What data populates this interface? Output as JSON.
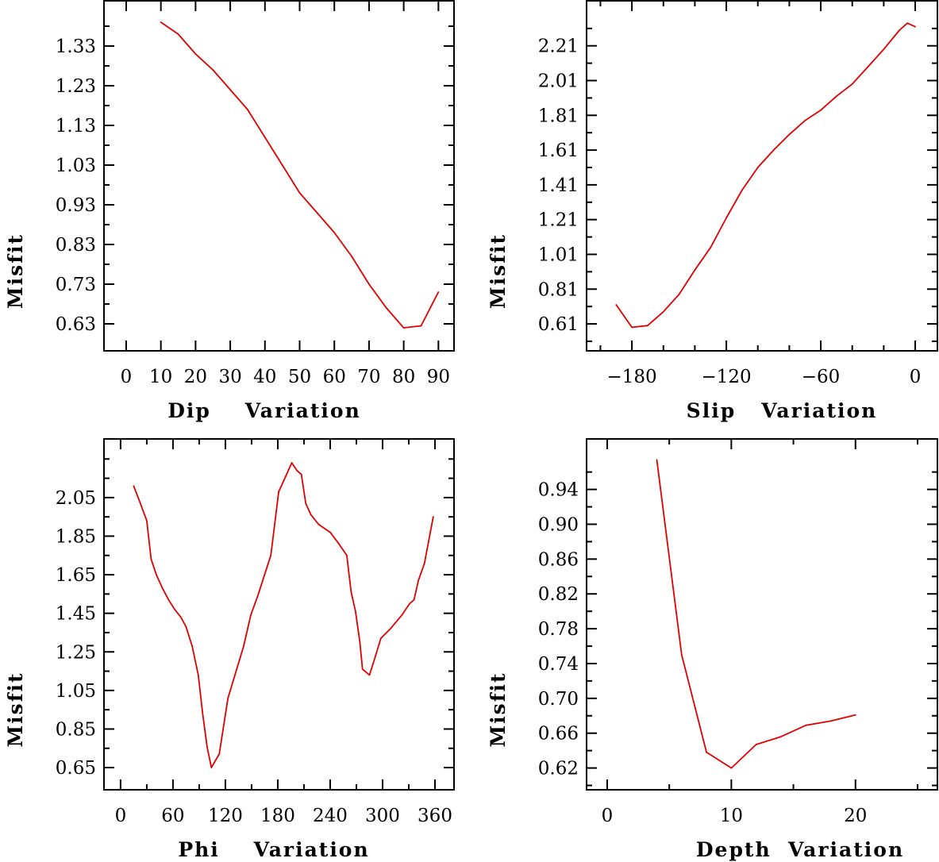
{
  "chart_data": [
    {
      "type": "line",
      "title": "",
      "xlabel": "Dip    Variation",
      "ylabel": "Misfit",
      "xlim": [
        -6.4,
        94.5
      ],
      "ylim": [
        0.562,
        1.444
      ],
      "xticks": [
        0,
        10,
        20,
        30,
        40,
        50,
        60,
        70,
        80,
        90
      ],
      "xtick_labels": [
        "0",
        "10",
        "20",
        "30",
        "40",
        "50",
        "60",
        "70",
        "80",
        "90"
      ],
      "xminor": [],
      "yticks": [
        0.63,
        0.73,
        0.83,
        0.93,
        1.03,
        1.13,
        1.23,
        1.33
      ],
      "ytick_labels": [
        "0.63",
        "0.73",
        "0.83",
        "0.93",
        "1.03",
        "1.13",
        "1.23",
        "1.33"
      ],
      "yminor": [
        0.68,
        0.78,
        0.88,
        0.98,
        1.08,
        1.18,
        1.28,
        1.38
      ],
      "grid": false,
      "color": "#e00000",
      "x": [
        10,
        15,
        20,
        25,
        30,
        35,
        40,
        45,
        50,
        55,
        60,
        65,
        70,
        75,
        80,
        85,
        90
      ],
      "y": [
        1.39,
        1.36,
        1.31,
        1.27,
        1.22,
        1.17,
        1.1,
        1.03,
        0.96,
        0.91,
        0.86,
        0.8,
        0.73,
        0.67,
        0.62,
        0.625,
        0.71
      ]
    },
    {
      "type": "line",
      "title": "",
      "xlabel": "Slip   Variation",
      "ylabel": "Misfit",
      "xlim": [
        -208.8,
        14.1
      ],
      "ylim": [
        0.455,
        2.469
      ],
      "xticks": [
        -180,
        -120,
        -60,
        0
      ],
      "xtick_labels": [
        "−180",
        "−120",
        "−60",
        "0"
      ],
      "xminor": [
        -200,
        -160,
        -140,
        -100,
        -80,
        -40,
        -20
      ],
      "yticks": [
        0.61,
        0.81,
        1.01,
        1.21,
        1.41,
        1.61,
        1.81,
        2.01,
        2.21
      ],
      "ytick_labels": [
        "0.61",
        "0.81",
        "1.01",
        "1.21",
        "1.41",
        "1.61",
        "1.81",
        "2.01",
        "2.21"
      ],
      "yminor": [
        0.51,
        0.71,
        0.91,
        1.11,
        1.31,
        1.51,
        1.71,
        1.91,
        2.11,
        2.31
      ],
      "grid": false,
      "color": "#e00000",
      "x": [
        -190,
        -180,
        -170,
        -160,
        -150,
        -140,
        -130,
        -120,
        -110,
        -100,
        -90,
        -80,
        -70,
        -60,
        -50,
        -40,
        -30,
        -20,
        -10,
        -5,
        0
      ],
      "y": [
        0.72,
        0.59,
        0.6,
        0.68,
        0.78,
        0.92,
        1.05,
        1.22,
        1.38,
        1.51,
        1.61,
        1.7,
        1.78,
        1.84,
        1.92,
        1.99,
        2.09,
        2.19,
        2.3,
        2.34,
        2.32
      ]
    },
    {
      "type": "line",
      "title": "",
      "xlabel": "Phi    Variation",
      "ylabel": "Misfit",
      "xlim": [
        -19,
        381.8
      ],
      "ylim": [
        0.535,
        2.354
      ],
      "xticks": [
        0,
        60,
        120,
        180,
        240,
        300,
        360
      ],
      "xtick_labels": [
        "0",
        "60",
        "120",
        "180",
        "240",
        "300",
        "360"
      ],
      "xminor": [
        30,
        90,
        150,
        210,
        270,
        330
      ],
      "yticks": [
        0.65,
        0.85,
        1.05,
        1.25,
        1.45,
        1.65,
        1.85,
        2.05
      ],
      "ytick_labels": [
        "0.65",
        "0.85",
        "1.05",
        "1.25",
        "1.45",
        "1.65",
        "1.85",
        "2.05"
      ],
      "yminor": [
        0.75,
        0.95,
        1.15,
        1.35,
        1.55,
        1.75,
        1.95,
        2.15,
        2.25
      ],
      "grid": false,
      "color": "#e00000",
      "x": [
        15,
        21,
        30,
        35,
        41,
        48,
        55,
        62,
        69,
        75,
        82,
        89,
        94,
        99,
        104,
        113,
        123,
        131,
        141,
        149,
        157,
        172,
        181,
        189,
        196,
        202,
        207,
        212,
        218,
        227,
        240,
        250,
        259,
        264,
        269,
        274,
        277,
        285,
        292,
        298,
        309,
        322,
        331,
        336,
        341,
        348,
        358
      ],
      "y": [
        2.11,
        2.04,
        1.93,
        1.73,
        1.65,
        1.58,
        1.52,
        1.47,
        1.43,
        1.38,
        1.28,
        1.13,
        0.93,
        0.76,
        0.65,
        0.72,
        1.01,
        1.13,
        1.28,
        1.44,
        1.54,
        1.75,
        2.08,
        2.16,
        2.23,
        2.19,
        2.17,
        2.02,
        1.96,
        1.91,
        1.87,
        1.81,
        1.75,
        1.56,
        1.46,
        1.3,
        1.16,
        1.13,
        1.23,
        1.32,
        1.37,
        1.44,
        1.5,
        1.52,
        1.62,
        1.71,
        1.95
      ]
    },
    {
      "type": "line",
      "title": "",
      "xlabel": "Depth  Variation",
      "ylabel": "Misfit",
      "xlim": [
        -1.66,
        26.6
      ],
      "ylim": [
        0.595,
        0.998
      ],
      "xticks": [
        0,
        10,
        20
      ],
      "xtick_labels": [
        "0",
        "10",
        "20"
      ],
      "xminor": [
        5,
        15,
        25
      ],
      "yticks": [
        0.62,
        0.66,
        0.7,
        0.74,
        0.78,
        0.82,
        0.86,
        0.9,
        0.94
      ],
      "ytick_labels": [
        "0.62",
        "0.66",
        "0.70",
        "0.74",
        "0.78",
        "0.82",
        "0.86",
        "0.90",
        "0.94"
      ],
      "yminor": [
        0.6,
        0.64,
        0.68,
        0.72,
        0.76,
        0.8,
        0.84,
        0.88,
        0.92,
        0.96
      ],
      "grid": false,
      "color": "#e00000",
      "x": [
        4,
        6,
        8,
        10,
        12,
        14,
        16,
        18,
        20
      ],
      "y": [
        0.974,
        0.75,
        0.638,
        0.62,
        0.647,
        0.656,
        0.669,
        0.674,
        0.681
      ]
    }
  ]
}
